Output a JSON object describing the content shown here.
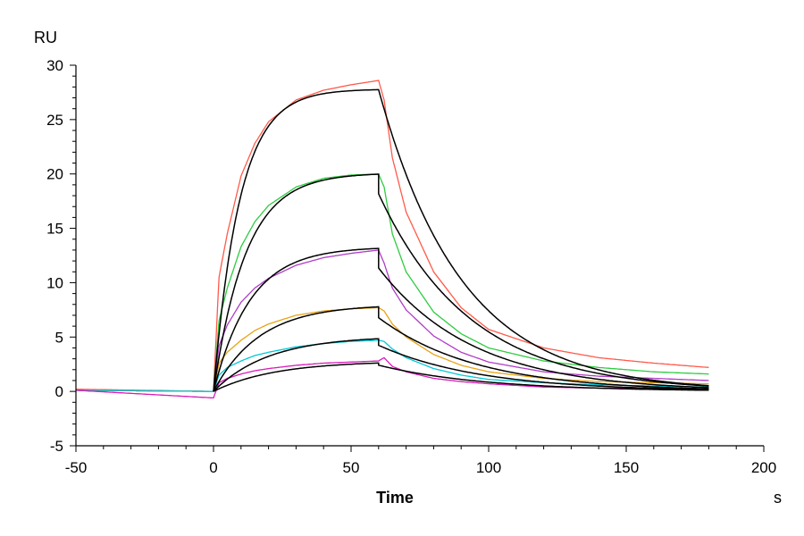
{
  "chart_data": {
    "type": "line",
    "title": "",
    "xlabel": "Time",
    "ylabel": "RU",
    "x_unit": "s",
    "xlim": [
      -50,
      200
    ],
    "ylim": [
      -5,
      30
    ],
    "x_ticks": [
      -50,
      0,
      50,
      100,
      150,
      200
    ],
    "y_ticks": [
      -5,
      0,
      5,
      10,
      15,
      20,
      25,
      30
    ],
    "x_tick_labels": [
      "-50",
      "0",
      "50",
      "100",
      "150",
      "200"
    ],
    "y_tick_labels": [
      "-5",
      "0",
      "5",
      "10",
      "15",
      "20",
      "25",
      "30"
    ],
    "grid": false,
    "legend": "none",
    "association_start": 0,
    "dissociation_start": 60,
    "end_time": 180,
    "fit_color": "#000000",
    "series": [
      {
        "color": "#ff5a4a",
        "x": [
          -50,
          0,
          2,
          5,
          10,
          15,
          20,
          30,
          40,
          50,
          60,
          62,
          65,
          70,
          80,
          90,
          100,
          120,
          140,
          160,
          180
        ],
        "y": [
          0.2,
          0,
          10.5,
          14.5,
          19.8,
          22.8,
          24.8,
          26.8,
          27.7,
          28.2,
          28.6,
          26.8,
          21.5,
          16.5,
          11.0,
          7.7,
          5.7,
          4.0,
          3.1,
          2.6,
          2.2
        ]
      },
      {
        "color": "#2ecc40",
        "x": [
          -50,
          0,
          2,
          5,
          10,
          15,
          20,
          30,
          40,
          50,
          60,
          62,
          65,
          70,
          80,
          90,
          100,
          120,
          140,
          160,
          180
        ],
        "y": [
          0.1,
          0,
          6.5,
          9.5,
          13.3,
          15.6,
          17.1,
          18.8,
          19.6,
          19.9,
          20.0,
          18.8,
          14.5,
          11.0,
          7.3,
          5.3,
          4.0,
          2.8,
          2.2,
          1.8,
          1.6
        ]
      },
      {
        "color": "#b03cc8",
        "x": [
          -50,
          0,
          2,
          5,
          10,
          15,
          20,
          30,
          40,
          50,
          60,
          62,
          65,
          70,
          80,
          90,
          100,
          120,
          140,
          160,
          180
        ],
        "y": [
          0.1,
          0,
          4.2,
          6.1,
          8.2,
          9.5,
          10.4,
          11.6,
          12.3,
          12.7,
          13.0,
          11.8,
          9.5,
          7.5,
          5.1,
          3.6,
          2.7,
          1.8,
          1.4,
          1.2,
          1.0
        ]
      },
      {
        "color": "#e8a317",
        "x": [
          -50,
          0,
          2,
          5,
          10,
          15,
          20,
          30,
          40,
          50,
          60,
          62,
          65,
          70,
          80,
          90,
          100,
          120,
          140,
          160,
          180
        ],
        "y": [
          0.1,
          0,
          2.6,
          3.6,
          4.7,
          5.6,
          6.2,
          7.0,
          7.4,
          7.6,
          7.7,
          7.4,
          6.2,
          5.0,
          3.4,
          2.4,
          1.8,
          1.2,
          0.9,
          0.8,
          0.7
        ]
      },
      {
        "color": "#00c8d8",
        "x": [
          -50,
          0,
          2,
          5,
          10,
          15,
          20,
          30,
          40,
          50,
          60,
          62,
          65,
          70,
          80,
          90,
          100,
          120,
          140,
          160,
          180
        ],
        "y": [
          0.1,
          0,
          1.5,
          2.2,
          2.8,
          3.3,
          3.6,
          4.1,
          4.4,
          4.6,
          4.7,
          4.6,
          3.9,
          3.1,
          2.1,
          1.5,
          1.1,
          0.8,
          0.6,
          0.5,
          0.4
        ]
      },
      {
        "color": "#d81bb8",
        "x": [
          -50,
          0,
          2,
          5,
          10,
          15,
          20,
          30,
          40,
          50,
          60,
          62,
          65,
          70,
          80,
          90,
          100,
          120,
          140,
          160,
          180
        ],
        "y": [
          0.1,
          -0.6,
          0.8,
          1.2,
          1.6,
          1.9,
          2.1,
          2.4,
          2.6,
          2.7,
          2.8,
          3.1,
          2.3,
          1.8,
          1.2,
          0.9,
          0.7,
          0.4,
          0.3,
          0.3,
          0.2
        ]
      }
    ],
    "fits": [
      {
        "Rmax": 27.8,
        "ka": 0.105,
        "kd": 0.033,
        "kd_slow": 0.0,
        "drop": 0.0
      },
      {
        "Rmax": 20.1,
        "ka": 0.085,
        "kd": 0.03,
        "drop": 1.8
      },
      {
        "Rmax": 13.3,
        "ka": 0.075,
        "kd": 0.029,
        "drop": 1.8
      },
      {
        "Rmax": 8.0,
        "ka": 0.06,
        "kd": 0.028,
        "drop": 1.0
      },
      {
        "Rmax": 5.1,
        "ka": 0.05,
        "kd": 0.027,
        "drop": 0.6
      },
      {
        "Rmax": 2.8,
        "ka": 0.045,
        "kd": 0.026,
        "drop": 0.2
      }
    ]
  }
}
